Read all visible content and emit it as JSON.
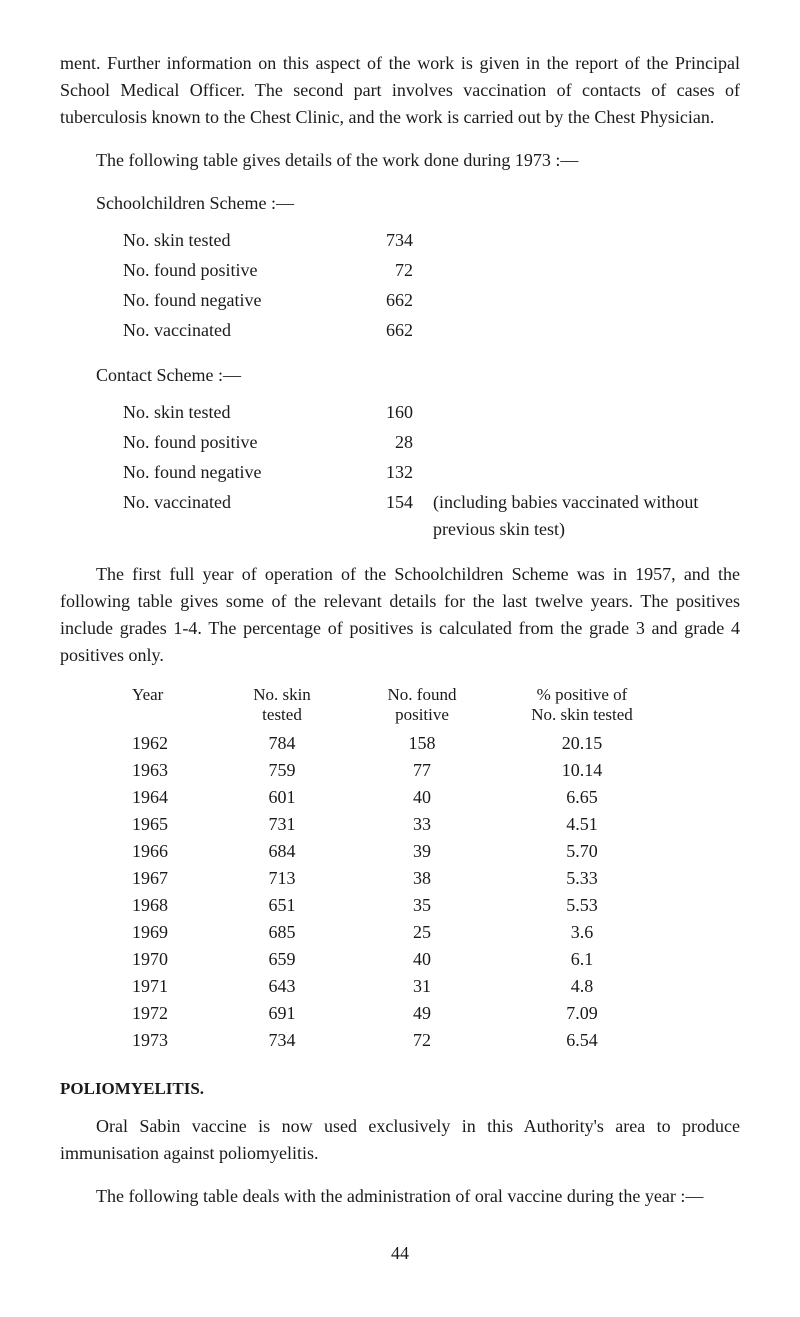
{
  "para1": "ment. Further information on this aspect of the work is given in the report of the Principal School Medical Officer. The second part involves vaccination of contacts of cases of tuberculosis known to the Chest Clinic, and the work is carried out by the Chest Physician.",
  "para2": "The following table gives details of the work done during 1973 :—",
  "scheme1_title": "Schoolchildren Scheme :—",
  "scheme1": [
    {
      "label": "No. skin tested",
      "value": "734"
    },
    {
      "label": "No. found positive",
      "value": "72"
    },
    {
      "label": "No. found negative",
      "value": "662"
    },
    {
      "label": "No. vaccinated",
      "value": "662"
    }
  ],
  "scheme2_title": "Contact Scheme :—",
  "scheme2": [
    {
      "label": "No. skin tested",
      "value": "160",
      "note": ""
    },
    {
      "label": "No. found positive",
      "value": "28",
      "note": ""
    },
    {
      "label": "No. found negative",
      "value": "132",
      "note": ""
    },
    {
      "label": "No. vaccinated",
      "value": "154",
      "note": "(including babies vaccinated without previous skin test)"
    }
  ],
  "para3": "The first full year of operation of the Schoolchildren Scheme was in 1957, and the following table gives some of the relevant details for the last twelve years. The positives include grades 1-4. The percentage of positives is calculated from the grade 3 and grade 4 positives only.",
  "yearTable": {
    "headers": {
      "year": "Year",
      "skin_l1": "No. skin",
      "skin_l2": "tested",
      "found_l1": "No. found",
      "found_l2": "positive",
      "pct_l1": "% positive of",
      "pct_l2": "No. skin tested"
    },
    "rows": [
      {
        "year": "1962",
        "skin": "784",
        "found": "158",
        "pct": "20.15"
      },
      {
        "year": "1963",
        "skin": "759",
        "found": "77",
        "pct": "10.14"
      },
      {
        "year": "1964",
        "skin": "601",
        "found": "40",
        "pct": "6.65"
      },
      {
        "year": "1965",
        "skin": "731",
        "found": "33",
        "pct": "4.51"
      },
      {
        "year": "1966",
        "skin": "684",
        "found": "39",
        "pct": "5.70"
      },
      {
        "year": "1967",
        "skin": "713",
        "found": "38",
        "pct": "5.33"
      },
      {
        "year": "1968",
        "skin": "651",
        "found": "35",
        "pct": "5.53"
      },
      {
        "year": "1969",
        "skin": "685",
        "found": "25",
        "pct": "3.6"
      },
      {
        "year": "1970",
        "skin": "659",
        "found": "40",
        "pct": "6.1"
      },
      {
        "year": "1971",
        "skin": "643",
        "found": "31",
        "pct": "4.8"
      },
      {
        "year": "1972",
        "skin": "691",
        "found": "49",
        "pct": "7.09"
      },
      {
        "year": "1973",
        "skin": "734",
        "found": "72",
        "pct": "6.54"
      }
    ]
  },
  "polio_heading": "POLIOMYELITIS.",
  "para4": "Oral Sabin vaccine is now used exclusively in this Authority's area to produce immunisation against poliomyelitis.",
  "para5": "The following table deals with the administration of oral vaccine during the year :—",
  "page_number": "44"
}
